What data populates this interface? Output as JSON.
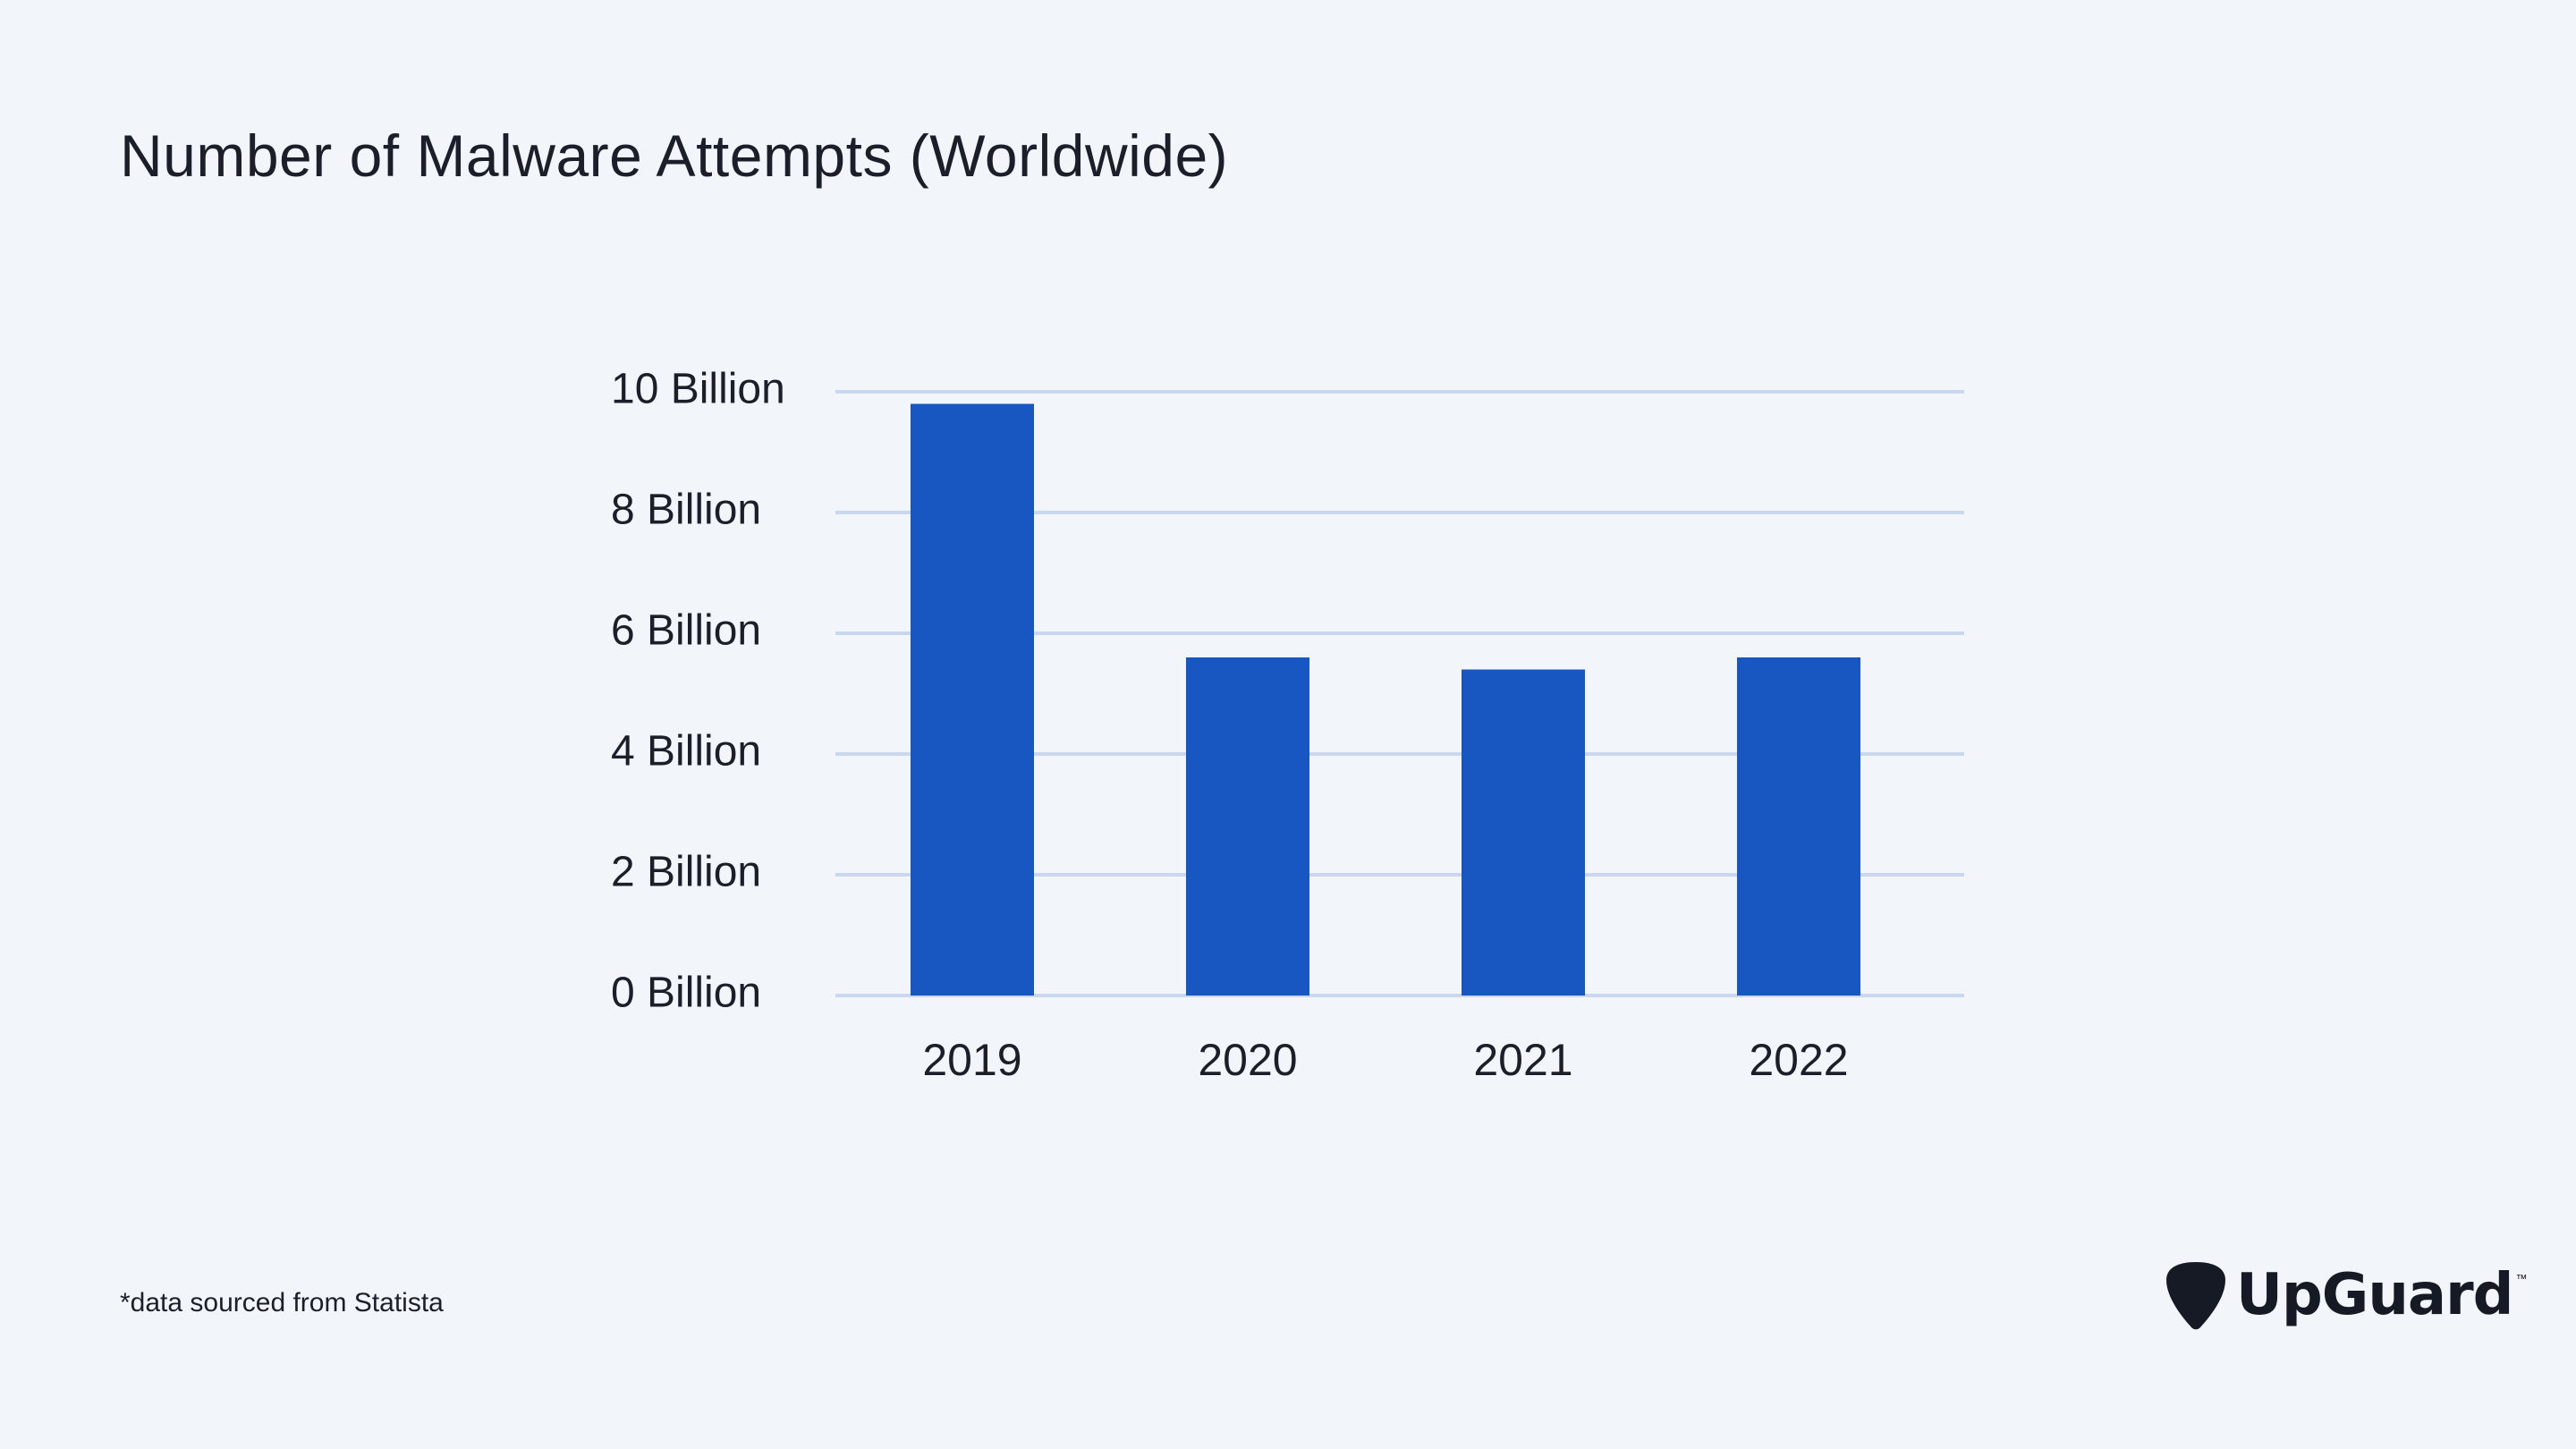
{
  "title": "Number of Malware Attempts (Worldwide)",
  "footnote": "*data sourced from Statista",
  "brand": {
    "name": "UpGuard",
    "trademark": "™",
    "icon": "guitar-pick-logo-icon"
  },
  "colors": {
    "background": "#f2f6fb",
    "bar": "#1856c2",
    "grid": "#c9d8ee",
    "text": "#1b1f2a"
  },
  "chart_data": {
    "type": "bar",
    "title": "Number of Malware Attempts (Worldwide)",
    "categories": [
      "2019",
      "2020",
      "2021",
      "2022"
    ],
    "values": [
      9.8,
      5.6,
      5.4,
      5.6
    ],
    "units": "Billion",
    "ylim": [
      0,
      10
    ],
    "yticks": [
      0,
      2,
      4,
      6,
      8,
      10
    ],
    "ytick_labels": [
      "0 Billion",
      "2 Billion",
      "4 Billion",
      "6 Billion",
      "8 Billion",
      "10 Billion"
    ],
    "grid": true,
    "legend": "none"
  }
}
